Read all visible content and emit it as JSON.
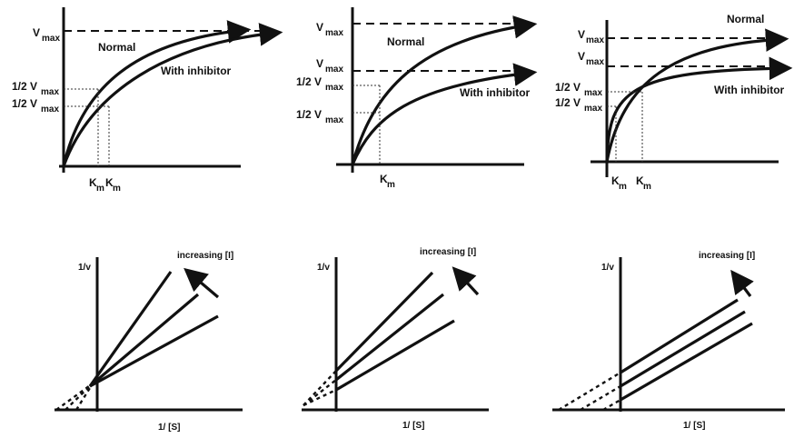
{
  "top": [
    {
      "vmax_labels": [
        "V",
        "1/2 V",
        "1/2 V"
      ],
      "vmax_subs": [
        "max",
        "max",
        "max"
      ],
      "km_labels": [
        "K",
        "K"
      ],
      "km_subs": [
        "m",
        "m"
      ],
      "curve_labels": [
        "Normal",
        "With inhibitor"
      ]
    },
    {
      "vmax_labels": [
        "V",
        "V",
        "1/2 V",
        "1/2 V"
      ],
      "vmax_subs": [
        "max",
        "max",
        "max",
        "max"
      ],
      "km_labels": [
        "K"
      ],
      "km_subs": [
        "m"
      ],
      "curve_labels": [
        "Normal",
        "With inhibitor"
      ]
    },
    {
      "vmax_labels": [
        "V",
        "V",
        "1/2 V",
        "1/2 V"
      ],
      "vmax_subs": [
        "max",
        "max",
        "max",
        "max"
      ],
      "km_labels": [
        "K",
        "K"
      ],
      "km_subs": [
        "m",
        "m"
      ],
      "curve_labels": [
        "Normal",
        "With inhibitor"
      ]
    }
  ],
  "bottom": [
    {
      "y_label": "1/v",
      "x_label": "1/ [S]",
      "arrow_label": "increasing [I]"
    },
    {
      "y_label": "1/v",
      "x_label": "1/ [S]",
      "arrow_label": "increasing [I]"
    },
    {
      "y_label": "1/v",
      "x_label": "1/ [S]",
      "arrow_label": "increasing [I]"
    }
  ]
}
